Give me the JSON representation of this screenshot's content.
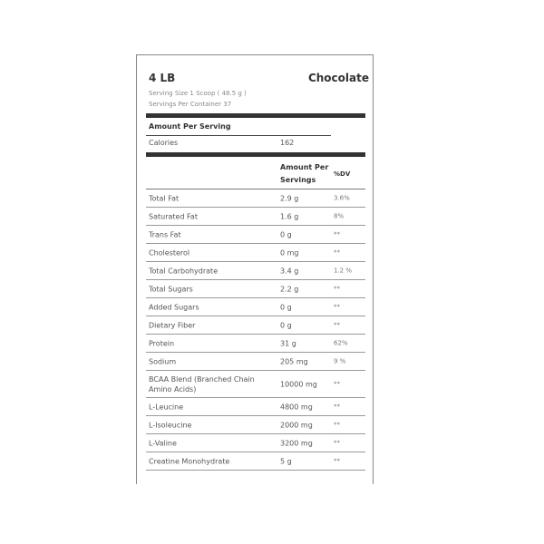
{
  "header": {
    "size": "4 LB",
    "flavor": "Chocolate",
    "serving_size": "Serving Size 1 Scoop ( 48.5 g )",
    "servings_per_container": "Servings Per Container 37"
  },
  "amount_per_serving": "Amount Per Serving",
  "calories": {
    "label": "Calories",
    "value": "162"
  },
  "columns": {
    "amount": "Amount Per Servings",
    "dv": "%DV"
  },
  "rows": [
    {
      "name": "Total Fat",
      "amount": "2.9 g",
      "dv": "3.6%"
    },
    {
      "name": "Saturated Fat",
      "amount": "1.6 g",
      "dv": "8%"
    },
    {
      "name": "Trans Fat",
      "amount": "0 g",
      "dv": "**"
    },
    {
      "name": "Cholesterol",
      "amount": "0 mg",
      "dv": "**"
    },
    {
      "name": "Total Carbohydrate",
      "amount": "3.4 g",
      "dv": "1.2 %"
    },
    {
      "name": "Total Sugars",
      "amount": "2.2 g",
      "dv": "**"
    },
    {
      "name": "Added Sugars",
      "amount": "0 g",
      "dv": "**"
    },
    {
      "name": "Dietary Fiber",
      "amount": "0 g",
      "dv": "**"
    },
    {
      "name": "Protein",
      "amount": "31 g",
      "dv": "62%"
    },
    {
      "name": "Sodium",
      "amount": "205 mg",
      "dv": "9 %"
    },
    {
      "name": "BCAA Blend (Branched Chain Amino Acids)",
      "amount": "10000 mg",
      "dv": "**"
    },
    {
      "name": "L-Leucine",
      "amount": "4800 mg",
      "dv": "**"
    },
    {
      "name": "L-Isoleucine",
      "amount": "2000 mg",
      "dv": "**"
    },
    {
      "name": "L-Valine",
      "amount": "3200 mg",
      "dv": "**"
    },
    {
      "name": "Creatine Monohydrate",
      "amount": "5 g",
      "dv": "**"
    }
  ]
}
